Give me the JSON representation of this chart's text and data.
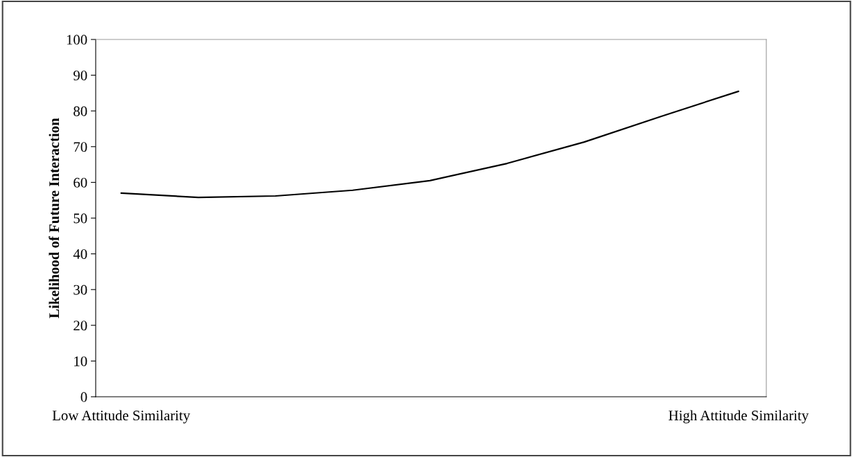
{
  "chart_data": {
    "type": "line",
    "ylabel": "Likelihood of Future Interaction",
    "categories": [
      "Low Attitude Similarity",
      null,
      null,
      null,
      null,
      null,
      null,
      null,
      "High Attitude Similarity"
    ],
    "series": [
      {
        "color": "#000000",
        "values": [
          57,
          55.8,
          56.2,
          57.8,
          60.5,
          65.3,
          71.3,
          78.5,
          85.5
        ]
      }
    ],
    "ylim": [
      0,
      100
    ],
    "yticks": [
      0,
      10,
      20,
      30,
      40,
      50,
      60,
      70,
      80,
      90,
      100
    ],
    "grid": false,
    "legend": false,
    "marker": "none",
    "line_style": "solid"
  }
}
